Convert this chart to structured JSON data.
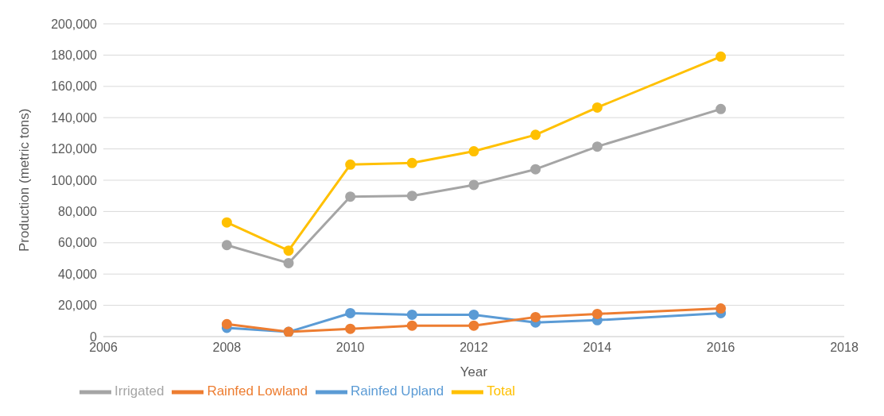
{
  "chart_data": {
    "type": "line",
    "xlabel": "Year",
    "ylabel": "Production (metric tons)",
    "x": [
      2008,
      2009,
      2010,
      2011,
      2012,
      2013,
      2014,
      2016
    ],
    "series": [
      {
        "name": "Rainfed Upland",
        "color": "#5b9bd5",
        "values": [
          5600,
          3000,
          15000,
          14000,
          14000,
          9000,
          10500,
          15000
        ]
      },
      {
        "name": "Rainfed Lowland",
        "color": "#ed7d31",
        "values": [
          8000,
          3000,
          5000,
          7000,
          7000,
          12500,
          14500,
          18000
        ]
      },
      {
        "name": "Irrigated",
        "color": "#a5a5a5",
        "values": [
          58500,
          47000,
          89500,
          90000,
          97000,
          107000,
          121500,
          145500
        ]
      },
      {
        "name": "Total",
        "color": "#ffc000",
        "values": [
          73000,
          55000,
          110000,
          111000,
          118500,
          129000,
          146500,
          179000
        ]
      }
    ],
    "xlim": [
      2006,
      2018
    ],
    "xticks": [
      2006,
      2008,
      2010,
      2012,
      2014,
      2016,
      2018
    ],
    "ylim": [
      0,
      200000
    ],
    "yticks": [
      0,
      {
        "value": 20000,
        "label": "20,000"
      },
      {
        "value": 40000,
        "label": "40,000"
      },
      {
        "value": 60000,
        "label": "60,000"
      },
      {
        "value": 80000,
        "label": "80,000"
      },
      {
        "value": 100000,
        "label": "100,000"
      },
      {
        "value": 120000,
        "label": "120,000"
      },
      {
        "value": 140000,
        "label": "140,000"
      },
      {
        "value": 160000,
        "label": "160,000"
      },
      {
        "value": 180000,
        "label": "180,000"
      },
      {
        "value": 200000,
        "label": "200,000"
      }
    ],
    "grid": "y",
    "legend": "bottom",
    "marker": "circle",
    "line_style": "solid"
  }
}
